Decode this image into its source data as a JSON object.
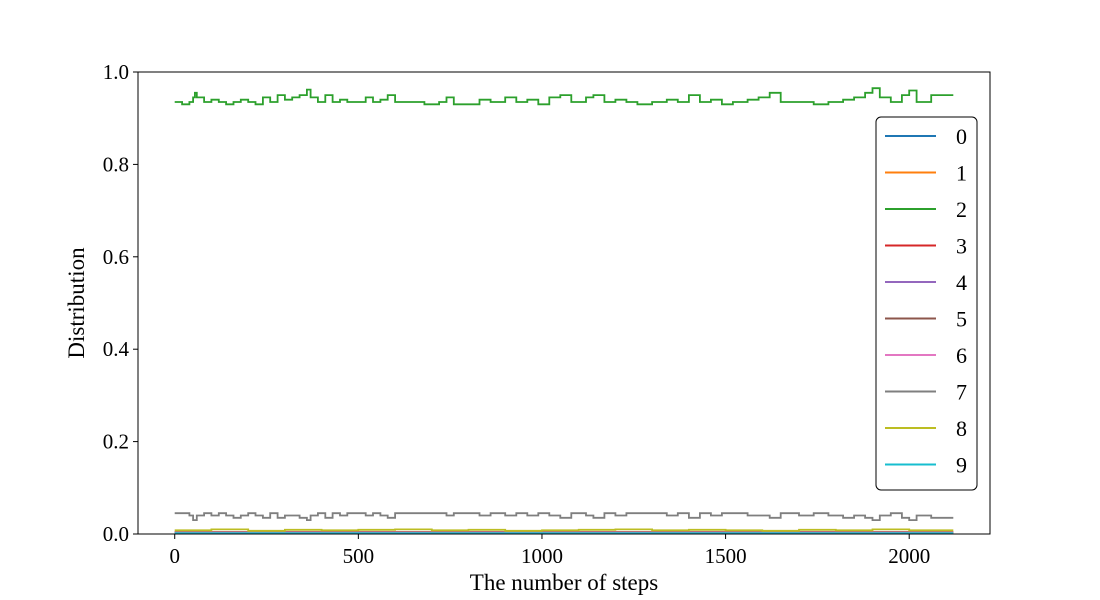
{
  "chart_data": {
    "type": "line",
    "title": "",
    "xlabel": "The number of steps",
    "ylabel": "Distribution",
    "xlim": [
      -100,
      2220
    ],
    "ylim": [
      0.0,
      1.0
    ],
    "xticks": [
      0,
      500,
      1000,
      1500,
      2000
    ],
    "xtick_labels": [
      "0",
      "500",
      "1000",
      "1500",
      "2000"
    ],
    "yticks": [
      0.0,
      0.2,
      0.4,
      0.6,
      0.8,
      1.0
    ],
    "ytick_labels": [
      "0.0",
      "0.2",
      "0.4",
      "0.6",
      "0.8",
      "1.0"
    ],
    "grid": false,
    "legend_position": "right",
    "step_count": 2120,
    "series": [
      {
        "name": "0",
        "color": "#1f77b4",
        "points": [
          [
            0,
            0.002
          ],
          [
            500,
            0.002
          ],
          [
            1000,
            0.002
          ],
          [
            1500,
            0.002
          ],
          [
            2120,
            0.002
          ]
        ]
      },
      {
        "name": "1",
        "color": "#ff7f0e",
        "points": [
          [
            0,
            0.003
          ],
          [
            500,
            0.003
          ],
          [
            1000,
            0.003
          ],
          [
            1500,
            0.003
          ],
          [
            2120,
            0.003
          ]
        ]
      },
      {
        "name": "2",
        "color": "#2ca02c",
        "points": [
          [
            0,
            0.935
          ],
          [
            20,
            0.93
          ],
          [
            40,
            0.935
          ],
          [
            50,
            0.945
          ],
          [
            55,
            0.955
          ],
          [
            60,
            0.945
          ],
          [
            80,
            0.935
          ],
          [
            100,
            0.94
          ],
          [
            120,
            0.935
          ],
          [
            140,
            0.93
          ],
          [
            160,
            0.935
          ],
          [
            180,
            0.94
          ],
          [
            200,
            0.935
          ],
          [
            220,
            0.93
          ],
          [
            240,
            0.945
          ],
          [
            260,
            0.935
          ],
          [
            280,
            0.95
          ],
          [
            300,
            0.94
          ],
          [
            320,
            0.945
          ],
          [
            340,
            0.95
          ],
          [
            360,
            0.962
          ],
          [
            370,
            0.945
          ],
          [
            390,
            0.935
          ],
          [
            410,
            0.95
          ],
          [
            430,
            0.935
          ],
          [
            450,
            0.94
          ],
          [
            470,
            0.935
          ],
          [
            500,
            0.935
          ],
          [
            520,
            0.945
          ],
          [
            540,
            0.935
          ],
          [
            560,
            0.94
          ],
          [
            580,
            0.95
          ],
          [
            600,
            0.935
          ],
          [
            640,
            0.935
          ],
          [
            680,
            0.93
          ],
          [
            720,
            0.935
          ],
          [
            740,
            0.945
          ],
          [
            760,
            0.93
          ],
          [
            800,
            0.93
          ],
          [
            830,
            0.94
          ],
          [
            860,
            0.935
          ],
          [
            900,
            0.945
          ],
          [
            930,
            0.935
          ],
          [
            960,
            0.94
          ],
          [
            990,
            0.93
          ],
          [
            1020,
            0.945
          ],
          [
            1050,
            0.95
          ],
          [
            1080,
            0.935
          ],
          [
            1120,
            0.945
          ],
          [
            1140,
            0.95
          ],
          [
            1170,
            0.935
          ],
          [
            1200,
            0.94
          ],
          [
            1230,
            0.935
          ],
          [
            1260,
            0.93
          ],
          [
            1300,
            0.935
          ],
          [
            1340,
            0.94
          ],
          [
            1370,
            0.935
          ],
          [
            1400,
            0.95
          ],
          [
            1430,
            0.935
          ],
          [
            1460,
            0.94
          ],
          [
            1490,
            0.93
          ],
          [
            1520,
            0.935
          ],
          [
            1560,
            0.94
          ],
          [
            1590,
            0.945
          ],
          [
            1620,
            0.955
          ],
          [
            1650,
            0.935
          ],
          [
            1700,
            0.935
          ],
          [
            1740,
            0.93
          ],
          [
            1780,
            0.935
          ],
          [
            1820,
            0.94
          ],
          [
            1850,
            0.945
          ],
          [
            1880,
            0.955
          ],
          [
            1900,
            0.965
          ],
          [
            1920,
            0.945
          ],
          [
            1950,
            0.935
          ],
          [
            1980,
            0.95
          ],
          [
            2000,
            0.96
          ],
          [
            2020,
            0.935
          ],
          [
            2060,
            0.95
          ],
          [
            2120,
            0.95
          ]
        ]
      },
      {
        "name": "3",
        "color": "#d62728",
        "points": [
          [
            0,
            0.004
          ],
          [
            500,
            0.004
          ],
          [
            1000,
            0.004
          ],
          [
            1500,
            0.004
          ],
          [
            2120,
            0.004
          ]
        ]
      },
      {
        "name": "4",
        "color": "#9467bd",
        "points": [
          [
            0,
            0.003
          ],
          [
            500,
            0.003
          ],
          [
            1000,
            0.003
          ],
          [
            1500,
            0.003
          ],
          [
            2120,
            0.003
          ]
        ]
      },
      {
        "name": "5",
        "color": "#8c564b",
        "points": [
          [
            0,
            0.004
          ],
          [
            500,
            0.004
          ],
          [
            1000,
            0.004
          ],
          [
            1500,
            0.004
          ],
          [
            2120,
            0.004
          ]
        ]
      },
      {
        "name": "6",
        "color": "#e377c2",
        "points": [
          [
            0,
            0.003
          ],
          [
            500,
            0.003
          ],
          [
            1000,
            0.003
          ],
          [
            1500,
            0.003
          ],
          [
            2120,
            0.003
          ]
        ]
      },
      {
        "name": "7",
        "color": "#7f7f7f",
        "points": [
          [
            0,
            0.045
          ],
          [
            20,
            0.045
          ],
          [
            40,
            0.04
          ],
          [
            50,
            0.03
          ],
          [
            60,
            0.04
          ],
          [
            80,
            0.045
          ],
          [
            100,
            0.04
          ],
          [
            120,
            0.045
          ],
          [
            140,
            0.04
          ],
          [
            160,
            0.035
          ],
          [
            180,
            0.04
          ],
          [
            200,
            0.045
          ],
          [
            220,
            0.04
          ],
          [
            240,
            0.035
          ],
          [
            260,
            0.045
          ],
          [
            280,
            0.035
          ],
          [
            300,
            0.04
          ],
          [
            320,
            0.04
          ],
          [
            340,
            0.035
          ],
          [
            360,
            0.03
          ],
          [
            370,
            0.04
          ],
          [
            390,
            0.045
          ],
          [
            410,
            0.035
          ],
          [
            430,
            0.045
          ],
          [
            450,
            0.04
          ],
          [
            470,
            0.045
          ],
          [
            500,
            0.045
          ],
          [
            520,
            0.04
          ],
          [
            540,
            0.045
          ],
          [
            560,
            0.04
          ],
          [
            580,
            0.035
          ],
          [
            600,
            0.045
          ],
          [
            640,
            0.045
          ],
          [
            680,
            0.045
          ],
          [
            720,
            0.045
          ],
          [
            740,
            0.04
          ],
          [
            760,
            0.045
          ],
          [
            800,
            0.045
          ],
          [
            830,
            0.04
          ],
          [
            860,
            0.045
          ],
          [
            900,
            0.04
          ],
          [
            930,
            0.045
          ],
          [
            960,
            0.04
          ],
          [
            990,
            0.045
          ],
          [
            1020,
            0.04
          ],
          [
            1050,
            0.035
          ],
          [
            1080,
            0.045
          ],
          [
            1120,
            0.04
          ],
          [
            1140,
            0.035
          ],
          [
            1170,
            0.045
          ],
          [
            1200,
            0.04
          ],
          [
            1230,
            0.045
          ],
          [
            1260,
            0.045
          ],
          [
            1300,
            0.045
          ],
          [
            1340,
            0.04
          ],
          [
            1370,
            0.045
          ],
          [
            1400,
            0.035
          ],
          [
            1430,
            0.045
          ],
          [
            1460,
            0.04
          ],
          [
            1490,
            0.045
          ],
          [
            1520,
            0.045
          ],
          [
            1560,
            0.04
          ],
          [
            1590,
            0.04
          ],
          [
            1620,
            0.035
          ],
          [
            1650,
            0.045
          ],
          [
            1700,
            0.04
          ],
          [
            1740,
            0.045
          ],
          [
            1780,
            0.04
          ],
          [
            1820,
            0.035
          ],
          [
            1850,
            0.04
          ],
          [
            1880,
            0.035
          ],
          [
            1900,
            0.03
          ],
          [
            1920,
            0.04
          ],
          [
            1950,
            0.045
          ],
          [
            1980,
            0.035
          ],
          [
            2000,
            0.03
          ],
          [
            2020,
            0.04
          ],
          [
            2060,
            0.035
          ],
          [
            2120,
            0.035
          ]
        ]
      },
      {
        "name": "8",
        "color": "#bcbd22",
        "points": [
          [
            0,
            0.008
          ],
          [
            100,
            0.01
          ],
          [
            200,
            0.007
          ],
          [
            300,
            0.009
          ],
          [
            400,
            0.008
          ],
          [
            500,
            0.009
          ],
          [
            600,
            0.01
          ],
          [
            700,
            0.008
          ],
          [
            800,
            0.009
          ],
          [
            900,
            0.007
          ],
          [
            1000,
            0.008
          ],
          [
            1100,
            0.009
          ],
          [
            1200,
            0.01
          ],
          [
            1300,
            0.008
          ],
          [
            1400,
            0.009
          ],
          [
            1500,
            0.008
          ],
          [
            1600,
            0.007
          ],
          [
            1700,
            0.009
          ],
          [
            1800,
            0.008
          ],
          [
            1900,
            0.01
          ],
          [
            2000,
            0.008
          ],
          [
            2120,
            0.008
          ]
        ]
      },
      {
        "name": "9",
        "color": "#17becf",
        "points": [
          [
            0,
            0.002
          ],
          [
            500,
            0.002
          ],
          [
            1000,
            0.002
          ],
          [
            1500,
            0.002
          ],
          [
            2120,
            0.002
          ]
        ]
      }
    ]
  }
}
